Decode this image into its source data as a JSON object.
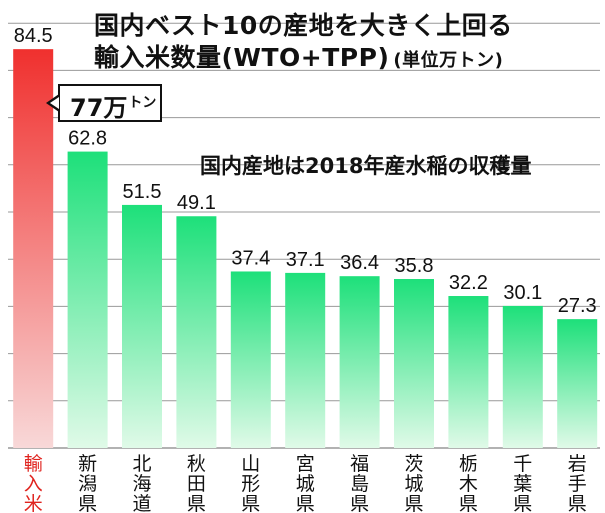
{
  "title_line1": "国内ベスト10の産地を大きく上回る",
  "title_line2": "輸入米数量(WTO+TPP)",
  "unit": "(単位万トン)",
  "subtitle": "国内産地は2018年産水稲の収穫量",
  "callout": {
    "value": "77万",
    "unit": "トン"
  },
  "colors": {
    "highlight_top": "#f0302e",
    "highlight_bottom": "#f8d8d8",
    "bar_top": "#1de07a",
    "bar_bottom": "#e0fae8",
    "highlight_label": "#e0241f",
    "grid": "#999999"
  },
  "chart_data": {
    "type": "bar",
    "categories": [
      "輸入米",
      "新潟県",
      "北海道",
      "秋田県",
      "山形県",
      "宮城県",
      "福島県",
      "茨城県",
      "栃木県",
      "千葉県",
      "岩手県"
    ],
    "values": [
      84.5,
      62.8,
      51.5,
      49.1,
      37.4,
      37.1,
      36.4,
      35.8,
      32.2,
      30.1,
      27.3
    ],
    "value_labels": [
      "84.5",
      "62.8",
      "51.5",
      "49.1",
      "37.4",
      "37.1",
      "36.4",
      "35.8",
      "32.2",
      "30.1",
      "27.3"
    ],
    "highlight_index": 0,
    "ylim": [
      0,
      90
    ],
    "grid": true,
    "grid_step": 10
  }
}
